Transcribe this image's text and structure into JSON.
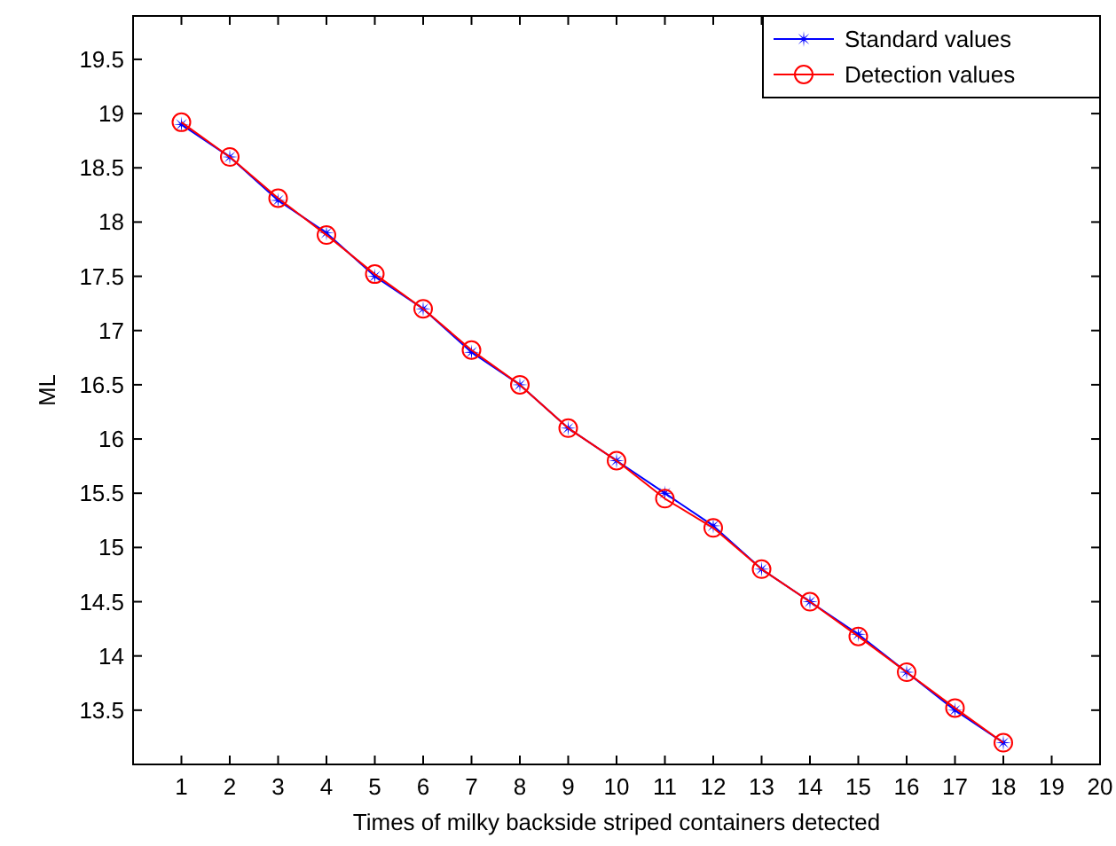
{
  "chart_data": {
    "type": "line",
    "xlabel": "Times of milky backside striped containers detected",
    "ylabel": "ML",
    "x": [
      1,
      2,
      3,
      4,
      5,
      6,
      7,
      8,
      9,
      10,
      11,
      12,
      13,
      14,
      15,
      16,
      17,
      18
    ],
    "xlim": [
      0,
      20
    ],
    "xticks": [
      1,
      2,
      3,
      4,
      5,
      6,
      7,
      8,
      9,
      10,
      11,
      12,
      13,
      14,
      15,
      16,
      17,
      18,
      19,
      20
    ],
    "ylim": [
      13,
      19.9
    ],
    "yticks": [
      13.5,
      14,
      14.5,
      15,
      15.5,
      16,
      16.5,
      17,
      17.5,
      18,
      18.5,
      19,
      19.5
    ],
    "legend": "top right",
    "grid": false,
    "series": [
      {
        "name": "Standard values",
        "color": "#0000ff",
        "marker": "star",
        "values": [
          18.9,
          18.6,
          18.2,
          17.9,
          17.5,
          17.2,
          16.8,
          16.5,
          16.1,
          15.8,
          15.5,
          15.2,
          14.8,
          14.5,
          14.2,
          13.85,
          13.5,
          13.2
        ]
      },
      {
        "name": "Detection values",
        "color": "#ff0000",
        "marker": "circle",
        "values": [
          18.92,
          18.6,
          18.22,
          17.88,
          17.52,
          17.2,
          16.82,
          16.5,
          16.1,
          15.8,
          15.45,
          15.18,
          14.8,
          14.5,
          14.18,
          13.85,
          13.52,
          13.2
        ]
      }
    ]
  }
}
